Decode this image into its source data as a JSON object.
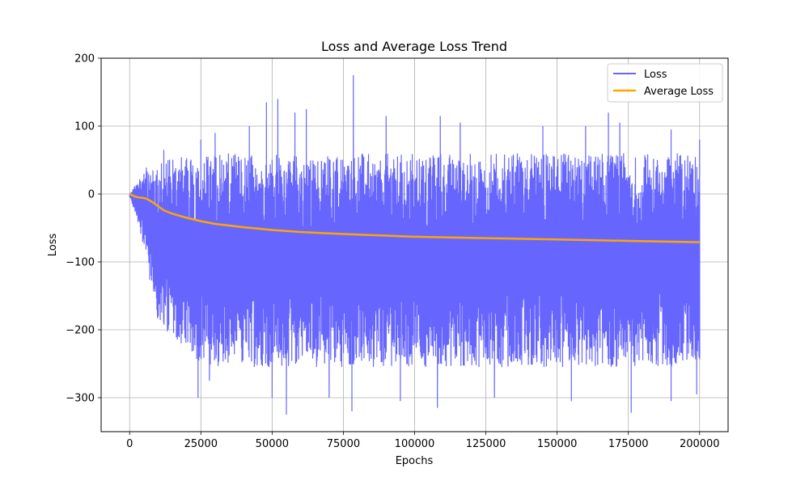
{
  "chart_data": {
    "type": "line",
    "title": "Loss and Average Loss Trend",
    "xlabel": "Epochs",
    "ylabel": "Loss",
    "xlim": [
      -10000,
      210000
    ],
    "ylim": [
      -350,
      200
    ],
    "x_ticks": [
      0,
      25000,
      50000,
      75000,
      100000,
      125000,
      150000,
      175000,
      200000
    ],
    "y_ticks": [
      -300,
      -200,
      -100,
      0,
      100,
      200
    ],
    "grid": true,
    "legend_position": "top-right",
    "series": [
      {
        "name": "Loss",
        "color": "#6666ff",
        "style": "noisy-band",
        "envelope": {
          "x": [
            0,
            2000,
            4000,
            6000,
            8000,
            10000,
            15000,
            20000,
            25000,
            30000,
            40000,
            50000,
            60000,
            75000,
            100000,
            125000,
            150000,
            175000,
            200000
          ],
          "upper": [
            0,
            15,
            30,
            40,
            40,
            45,
            55,
            55,
            58,
            60,
            60,
            60,
            60,
            60,
            60,
            60,
            60,
            60,
            60
          ],
          "lower": [
            -5,
            -30,
            -60,
            -100,
            -150,
            -190,
            -215,
            -230,
            -250,
            -255,
            -255,
            -255,
            -255,
            -255,
            -255,
            -255,
            -255,
            -255,
            -255
          ]
        },
        "spikes_high": [
          [
            12000,
            65
          ],
          [
            25000,
            80
          ],
          [
            30000,
            90
          ],
          [
            42000,
            100
          ],
          [
            48000,
            135
          ],
          [
            52000,
            140
          ],
          [
            58000,
            120
          ],
          [
            62000,
            125
          ],
          [
            78500,
            175
          ],
          [
            90000,
            115
          ],
          [
            109000,
            115
          ],
          [
            116000,
            105
          ],
          [
            145000,
            100
          ],
          [
            160000,
            100
          ],
          [
            168000,
            120
          ],
          [
            172000,
            105
          ],
          [
            190000,
            95
          ],
          [
            200000,
            80
          ]
        ],
        "spikes_low": [
          [
            24000,
            -300
          ],
          [
            28000,
            -275
          ],
          [
            50000,
            -300
          ],
          [
            55000,
            -325
          ],
          [
            70000,
            -300
          ],
          [
            78000,
            -320
          ],
          [
            95000,
            -305
          ],
          [
            108000,
            -315
          ],
          [
            128000,
            -300
          ],
          [
            155000,
            -305
          ],
          [
            176000,
            -322
          ],
          [
            190000,
            -305
          ],
          [
            199000,
            -295
          ]
        ]
      },
      {
        "name": "Average Loss",
        "color": "#ffa500",
        "x": [
          0,
          1000,
          2000,
          3000,
          5000,
          6000,
          8000,
          10000,
          12000,
          15000,
          20000,
          25000,
          30000,
          40000,
          50000,
          60000,
          75000,
          100000,
          125000,
          150000,
          175000,
          200000
        ],
        "y": [
          0,
          -2,
          -4,
          -5,
          -6,
          -7,
          -12,
          -18,
          -24,
          -29,
          -35,
          -40,
          -44,
          -49,
          -53,
          -56,
          -59,
          -63,
          -65,
          -67,
          -69,
          -71
        ]
      }
    ]
  }
}
